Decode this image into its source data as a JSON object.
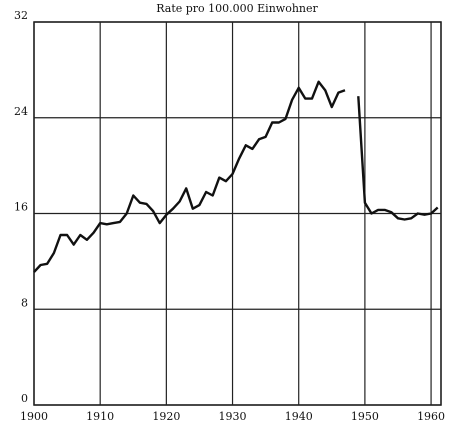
{
  "chart_data": {
    "type": "line",
    "title": "Rate pro 100.000 Einwohner",
    "x": [
      1900,
      1901,
      1902,
      1903,
      1904,
      1905,
      1906,
      1907,
      1908,
      1909,
      1910,
      1911,
      1912,
      1913,
      1914,
      1915,
      1916,
      1917,
      1918,
      1919,
      1920,
      1921,
      1922,
      1923,
      1924,
      1925,
      1926,
      1927,
      1928,
      1929,
      1930,
      1931,
      1932,
      1933,
      1934,
      1935,
      1936,
      1937,
      1938,
      1939,
      1940,
      1941,
      1942,
      1943,
      1944,
      1945,
      1946,
      1947,
      1948,
      1949,
      1950,
      1951,
      1952,
      1953,
      1954,
      1955,
      1956,
      1957,
      1958,
      1959,
      1960,
      1961
    ],
    "values": [
      11.1,
      11.7,
      11.8,
      12.7,
      14.2,
      14.2,
      13.4,
      14.2,
      13.8,
      14.4,
      15.2,
      15.1,
      15.2,
      15.3,
      16.0,
      17.5,
      16.9,
      16.8,
      16.2,
      15.2,
      15.9,
      16.4,
      17.0,
      18.1,
      16.4,
      16.7,
      17.8,
      17.5,
      19.0,
      18.7,
      19.3,
      20.6,
      21.7,
      21.4,
      22.2,
      22.4,
      23.6,
      23.6,
      23.9,
      25.5,
      26.5,
      25.6,
      25.6,
      27.0,
      26.3,
      24.9,
      26.1,
      26.3,
      null,
      25.8,
      16.9,
      16.0,
      16.3,
      16.3,
      16.1,
      15.6,
      15.5,
      15.6,
      16.0,
      15.9,
      16.0,
      16.5
    ],
    "color": "#111111",
    "xlim": [
      1900,
      1961.5
    ],
    "xticks": [
      1900,
      1910,
      1920,
      1930,
      1940,
      1950,
      1960
    ],
    "ylim": [
      0,
      32
    ],
    "yticks": [
      0,
      8,
      16,
      24,
      32
    ],
    "grid": true
  }
}
